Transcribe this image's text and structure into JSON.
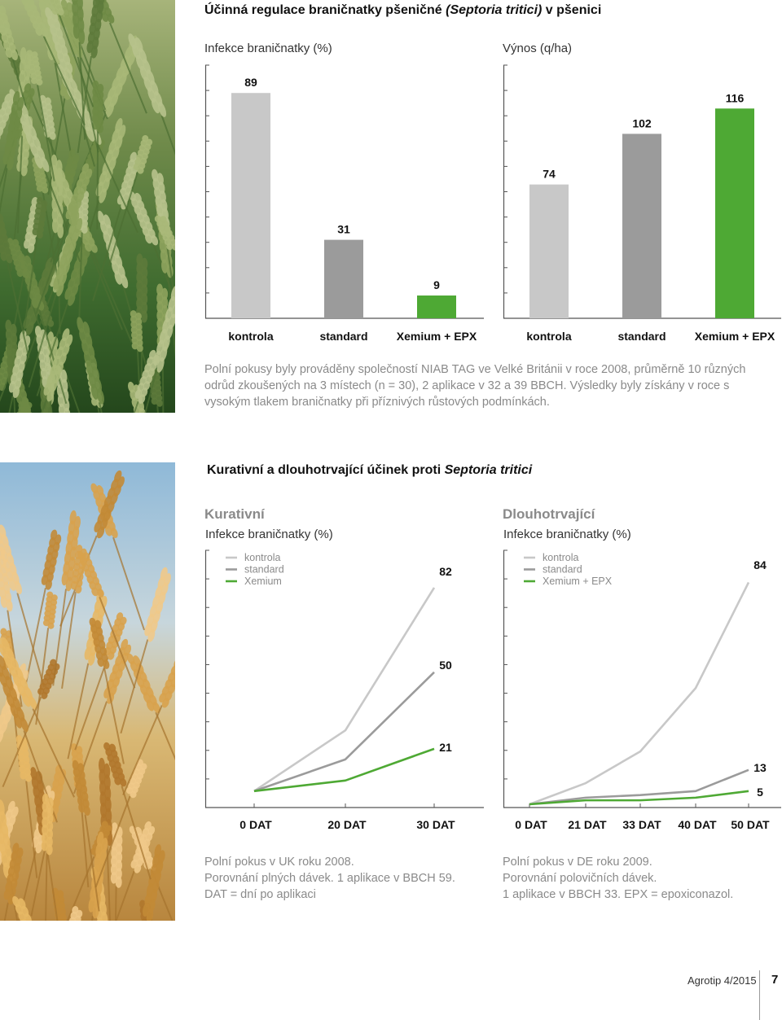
{
  "top": {
    "title_plain": "Účinná regulace braničnatky pšeničné ",
    "title_italic": "(Septoria tritici)",
    "title_end": " v pšenici",
    "caption": "Polní pokusy byly prováděny společností NIAB TAG ve Velké Británii v roce 2008, průměrně 10 různých odrůd zkoušených na 3 místech (n = 30), 2 aplikace v 32 a 39 BBCH. Výsledky byly získány v roce s vysokým tlakem braničnatky při příznivých růstových podmínkách."
  },
  "bottom": {
    "title_plain": "Kurativní a dlouhotrvající účinek proti ",
    "title_italic": "Septoria tritici",
    "left_section": "Kurativní",
    "right_section": "Dlouhotrvající",
    "left_caption": [
      "Polní pokus v UK roku 2008.",
      "Porovnání plných dávek. 1 aplikace v BBCH 59.",
      "DAT = dní po aplikaci"
    ],
    "right_caption": [
      "Polní pokus v DE roku 2009.",
      "Porovnání polovičních dávek.",
      "1 aplikace v BBCH 33. EPX = epoxiconazol."
    ]
  },
  "footer": {
    "magazine": "Agrotip 4/2015",
    "page": "7"
  },
  "colors": {
    "light": "#c8c8c8",
    "mid": "#9b9b9b",
    "green": "#4ea934",
    "axis": "#555555"
  },
  "chart_data": [
    {
      "type": "bar",
      "title": "",
      "ylabel": "Infekce braničnatky (%)",
      "categories": [
        "kontrola",
        "standard",
        "Xemium + EPX"
      ],
      "values": [
        89,
        31,
        9
      ],
      "ylim": [
        0,
        100
      ]
    },
    {
      "type": "bar",
      "title": "",
      "ylabel": "Výnos (q/ha)",
      "categories": [
        "kontrola",
        "standard",
        "Xemium + EPX"
      ],
      "values": [
        74,
        102,
        116
      ],
      "ylim": [
        0,
        140
      ]
    },
    {
      "type": "line",
      "title": "Kurativní",
      "ylabel": "Infekce braničnatky (%)",
      "x": [
        "0 DAT",
        "20 DAT",
        "30 DAT"
      ],
      "series": [
        {
          "name": "kontrola",
          "values": [
            5,
            28,
            82
          ]
        },
        {
          "name": "standard",
          "values": [
            5,
            17,
            50
          ]
        },
        {
          "name": "Xemium",
          "values": [
            5,
            9,
            21
          ]
        }
      ],
      "end_labels": [
        "82",
        "50",
        "21"
      ],
      "ylim": [
        0,
        90
      ]
    },
    {
      "type": "line",
      "title": "Dlouhotrvající",
      "ylabel": "Infekce braničnatky (%)",
      "x": [
        "0 DAT",
        "21 DAT",
        "33 DAT",
        "40 DAT",
        "50 DAT"
      ],
      "series": [
        {
          "name": "kontrola",
          "values": [
            0,
            8,
            20,
            44,
            84
          ]
        },
        {
          "name": "standard",
          "values": [
            0,
            2.5,
            3.5,
            5,
            13
          ]
        },
        {
          "name": "Xemium + EPX",
          "values": [
            0,
            1.5,
            1.5,
            2.5,
            5
          ]
        }
      ],
      "end_labels": [
        "84",
        "13",
        "5"
      ],
      "ylim": [
        0,
        90
      ]
    }
  ]
}
